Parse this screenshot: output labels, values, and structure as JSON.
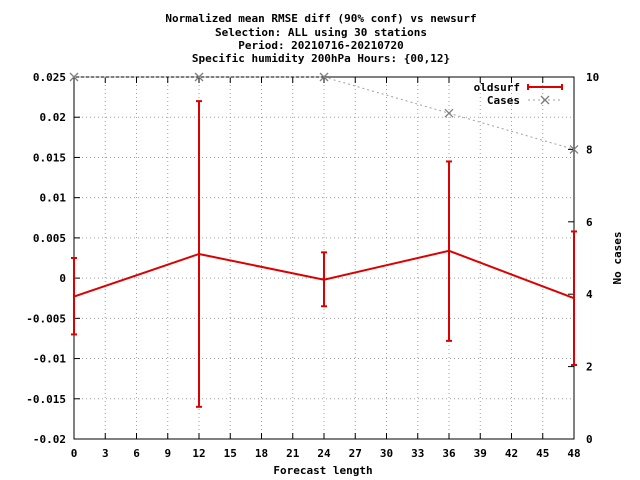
{
  "chart_data": {
    "type": "line",
    "title_lines": [
      "Normalized mean RMSE diff (90% conf) vs newsurf",
      "Selection: ALL using    30 stations",
      "Period: 20210716-20210720",
      "Specific humidity 200hPa   Hours: {00,12}"
    ],
    "xlabel": "Forecast length",
    "ylabel_right": "No cases",
    "xlim": [
      0,
      48
    ],
    "ylim": [
      -0.02,
      0.025
    ],
    "y2lim": [
      0,
      10
    ],
    "x_ticks": [
      "0",
      "3",
      "6",
      "9",
      "12",
      "15",
      "18",
      "21",
      "24",
      "27",
      "30",
      "33",
      "36",
      "39",
      "42",
      "45",
      "48"
    ],
    "y_ticks": [
      "-0.02",
      "-0.015",
      "-0.01",
      "-0.005",
      "0",
      "0.005",
      "0.01",
      "0.015",
      "0.02",
      "0.025"
    ],
    "y2_ticks": [
      "0",
      "2",
      "4",
      "6",
      "8",
      "10"
    ],
    "grid": true,
    "legend_position": "top-right",
    "series": [
      {
        "name": "oldsurf",
        "color": "#dd0000",
        "style": "line-with-errorbars",
        "x": [
          0,
          12,
          24,
          36,
          48
        ],
        "y": [
          -0.0023,
          0.003,
          -0.0002,
          0.0034,
          -0.0025
        ],
        "err_low": [
          -0.007,
          -0.016,
          -0.0035,
          -0.0078,
          -0.0108
        ],
        "err_high": [
          0.0025,
          0.022,
          0.0032,
          0.0145,
          0.0058
        ]
      },
      {
        "name": "Cases",
        "color": "#a0a0a0",
        "style": "dotted-with-x-markers",
        "axis": "right",
        "x": [
          0,
          12,
          24,
          36,
          48
        ],
        "y": [
          10,
          10,
          10,
          9,
          8
        ]
      }
    ]
  }
}
